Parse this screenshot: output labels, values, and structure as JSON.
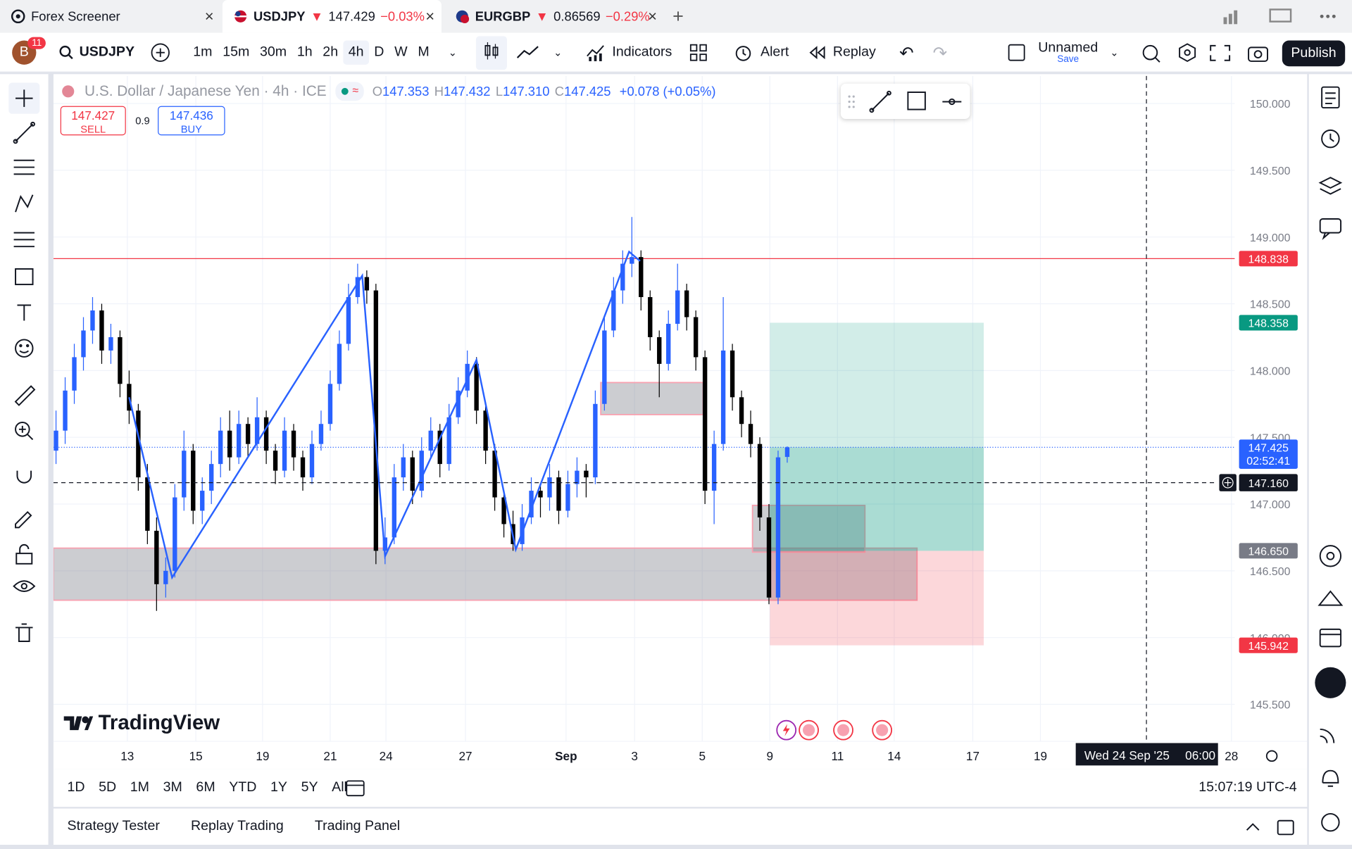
{
  "tabs": [
    {
      "title": "Forex Screener"
    },
    {
      "symbol": "USDJPY",
      "arrow": "▼",
      "price": "147.429",
      "change": "−0.03%"
    },
    {
      "symbol": "EURGBP",
      "arrow": "▼",
      "price": "0.86569",
      "change": "−0.29%"
    }
  ],
  "toolbar": {
    "avatar": "B",
    "badge": "11",
    "symbol": "USDJPY",
    "intervals": [
      "1m",
      "15m",
      "30m",
      "1h",
      "2h",
      "4h",
      "D",
      "W",
      "M"
    ],
    "active_interval": 5,
    "indicators": "Indicators",
    "alert": "Alert",
    "replay": "Replay",
    "layout": "Unnamed",
    "save": "Save",
    "publish": "Publish"
  },
  "legend": {
    "name": "U.S. Dollar / Japanese Yen · 4h · ICE",
    "ohlc": [
      {
        "k": "O",
        "v": "147.353"
      },
      {
        "k": "H",
        "v": "147.432"
      },
      {
        "k": "L",
        "v": "147.310"
      },
      {
        "k": "C",
        "v": "147.425"
      }
    ],
    "change": "+0.078 (+0.05%)",
    "sell": {
      "price": "147.427",
      "label": "SELL"
    },
    "spread": "0.9",
    "buy": {
      "price": "147.436",
      "label": "BUY"
    }
  },
  "chart": {
    "type": "candlestick",
    "up_color": "#2962ff",
    "down_color": "#000000",
    "grid": true,
    "ylim": [
      145.223,
      150.207
    ],
    "yticks": [
      {
        "value": 150,
        "label": "150.000"
      },
      {
        "value": 149.5,
        "label": "149.500"
      },
      {
        "value": 149,
        "label": "149.000"
      },
      {
        "value": 148.5,
        "label": "148.500"
      },
      {
        "value": 148,
        "label": "148.000"
      },
      {
        "value": 147.5,
        "label": "147.500"
      },
      {
        "value": 147,
        "label": "147.000"
      },
      {
        "value": 146.5,
        "label": "146.500"
      },
      {
        "value": 146,
        "label": "146.000"
      },
      {
        "value": 145.5,
        "label": "145.500"
      }
    ],
    "xlim": [
      -0.28,
      128.96
    ],
    "xticks": [
      {
        "value": 7.8,
        "label": "13"
      },
      {
        "value": 15.3,
        "label": "15"
      },
      {
        "value": 22.6,
        "label": "19"
      },
      {
        "value": 30,
        "label": "21"
      },
      {
        "value": 36.1,
        "label": "24"
      },
      {
        "value": 44.8,
        "label": "27"
      },
      {
        "value": 55.8,
        "label": "Sep"
      },
      {
        "value": 63.3,
        "label": "3"
      },
      {
        "value": 70.7,
        "label": "5"
      },
      {
        "value": 78.1,
        "label": "9"
      },
      {
        "value": 85.5,
        "label": "11"
      },
      {
        "value": 91.7,
        "label": "14"
      },
      {
        "value": 100.3,
        "label": "17"
      },
      {
        "value": 107.7,
        "label": "19"
      },
      {
        "value": 128.6,
        "label": "28"
      }
    ],
    "candles": [
      [
        147.4,
        147.7,
        147.3,
        147.55
      ],
      [
        147.55,
        147.95,
        147.45,
        147.85
      ],
      [
        147.85,
        148.2,
        147.75,
        148.1
      ],
      [
        148.1,
        148.4,
        148.0,
        148.3
      ],
      [
        148.3,
        148.55,
        148.2,
        148.45
      ],
      [
        148.45,
        148.5,
        148.05,
        148.15
      ],
      [
        148.15,
        148.35,
        148.05,
        148.25
      ],
      [
        148.25,
        148.3,
        147.8,
        147.9
      ],
      [
        147.9,
        148.0,
        147.6,
        147.7
      ],
      [
        147.7,
        147.75,
        147.1,
        147.2
      ],
      [
        147.2,
        147.3,
        146.7,
        146.8
      ],
      [
        146.8,
        146.9,
        146.2,
        146.4
      ],
      [
        146.4,
        146.6,
        146.3,
        146.5
      ],
      [
        146.5,
        147.15,
        146.45,
        147.05
      ],
      [
        147.05,
        147.55,
        146.95,
        147.4
      ],
      [
        147.4,
        147.45,
        146.85,
        146.95
      ],
      [
        146.95,
        147.2,
        146.85,
        147.1
      ],
      [
        147.1,
        147.4,
        147.0,
        147.3
      ],
      [
        147.3,
        147.65,
        147.2,
        147.55
      ],
      [
        147.55,
        147.7,
        147.25,
        147.35
      ],
      [
        147.35,
        147.7,
        147.3,
        147.6
      ],
      [
        147.6,
        147.65,
        147.35,
        147.45
      ],
      [
        147.45,
        147.8,
        147.4,
        147.65
      ],
      [
        147.65,
        147.7,
        147.3,
        147.4
      ],
      [
        147.4,
        147.45,
        147.15,
        147.25
      ],
      [
        147.25,
        147.65,
        147.2,
        147.55
      ],
      [
        147.55,
        147.6,
        147.25,
        147.35
      ],
      [
        147.35,
        147.4,
        147.1,
        147.2
      ],
      [
        147.2,
        147.55,
        147.15,
        147.45
      ],
      [
        147.45,
        147.7,
        147.4,
        147.6
      ],
      [
        147.6,
        148.0,
        147.55,
        147.9
      ],
      [
        147.9,
        148.3,
        147.85,
        148.2
      ],
      [
        148.2,
        148.65,
        148.15,
        148.55
      ],
      [
        148.55,
        148.8,
        148.5,
        148.7
      ],
      [
        148.7,
        148.75,
        148.5,
        148.6
      ],
      [
        148.6,
        148.65,
        146.55,
        146.65
      ],
      [
        146.65,
        146.9,
        146.55,
        146.75
      ],
      [
        146.75,
        147.3,
        146.7,
        147.2
      ],
      [
        147.2,
        147.45,
        147.1,
        147.35
      ],
      [
        147.35,
        147.4,
        147.0,
        147.1
      ],
      [
        147.1,
        147.5,
        147.05,
        147.4
      ],
      [
        147.4,
        147.65,
        147.35,
        147.55
      ],
      [
        147.55,
        147.6,
        147.2,
        147.3
      ],
      [
        147.3,
        147.75,
        147.25,
        147.65
      ],
      [
        147.65,
        147.95,
        147.6,
        147.85
      ],
      [
        147.85,
        148.15,
        147.8,
        148.05
      ],
      [
        148.05,
        148.1,
        147.6,
        147.7
      ],
      [
        147.7,
        147.75,
        147.3,
        147.4
      ],
      [
        147.4,
        147.45,
        146.95,
        147.05
      ],
      [
        147.05,
        147.1,
        146.75,
        146.85
      ],
      [
        146.85,
        146.95,
        146.65,
        146.7
      ],
      [
        146.7,
        147.0,
        146.65,
        146.9
      ],
      [
        146.9,
        147.2,
        146.85,
        147.1
      ],
      [
        147.1,
        147.15,
        146.9,
        147.05
      ],
      [
        147.05,
        147.3,
        146.95,
        147.2
      ],
      [
        147.2,
        147.25,
        146.85,
        146.95
      ],
      [
        146.95,
        147.25,
        146.9,
        147.15
      ],
      [
        147.15,
        147.35,
        147.05,
        147.25
      ],
      [
        147.25,
        147.3,
        147.05,
        147.2
      ],
      [
        147.2,
        147.85,
        147.15,
        147.75
      ],
      [
        147.75,
        148.4,
        147.7,
        148.3
      ],
      [
        148.3,
        148.7,
        148.25,
        148.6
      ],
      [
        148.6,
        148.9,
        148.5,
        148.8
      ],
      [
        148.8,
        149.15,
        148.7,
        148.85
      ],
      [
        148.85,
        148.9,
        148.45,
        148.55
      ],
      [
        148.55,
        148.6,
        148.15,
        148.25
      ],
      [
        148.25,
        148.3,
        147.8,
        148.05
      ],
      [
        148.05,
        148.45,
        148.0,
        148.35
      ],
      [
        148.35,
        148.8,
        148.3,
        148.6
      ],
      [
        148.6,
        148.65,
        148.3,
        148.4
      ],
      [
        148.4,
        148.45,
        148.0,
        148.1
      ],
      [
        148.1,
        148.15,
        147.0,
        147.1
      ],
      [
        147.1,
        147.55,
        146.85,
        147.45
      ],
      [
        147.45,
        148.55,
        147.4,
        148.15
      ],
      [
        148.15,
        148.2,
        147.7,
        147.8
      ],
      [
        147.8,
        147.85,
        147.5,
        147.6
      ],
      [
        147.6,
        147.7,
        147.35,
        147.45
      ],
      [
        147.45,
        147.5,
        146.8,
        146.9
      ],
      [
        146.9,
        147.0,
        146.25,
        146.3
      ],
      [
        146.3,
        147.4,
        146.25,
        147.35
      ],
      [
        147.353,
        147.432,
        147.31,
        147.425
      ]
    ],
    "zigzag": {
      "bar": [
        8,
        12.7,
        33.5,
        36,
        46,
        50.3,
        62.7,
        63.9
      ],
      "price": [
        147.8,
        146.45,
        148.71,
        146.61,
        148.08,
        146.66,
        148.89,
        148.82
      ],
      "color": "#2962ff"
    },
    "boxes": [
      {
        "x": [
          -0.3,
          94.2
        ],
        "y": [
          146.28,
          146.67
        ]
      },
      {
        "x": [
          59.6,
          70.8
        ],
        "y": [
          147.67,
          147.91
        ]
      },
      {
        "x": [
          76.2,
          88.5
        ],
        "y": [
          146.64,
          146.99
        ]
      }
    ],
    "position": {
      "x": [
        78.1,
        101.5
      ],
      "entry": 146.65,
      "target": 148.358,
      "stop": 145.942
    },
    "levels": [
      {
        "value": 148.838,
        "label": "148.838",
        "color": "#f23645",
        "line": "solid"
      },
      {
        "value": 148.358,
        "label": "148.358",
        "color": "#089981",
        "line": "none"
      },
      {
        "value": 147.425,
        "label": "147.425",
        "sub": "02:52:41",
        "color": "#2962ff",
        "line": "dotted"
      },
      {
        "value": 146.65,
        "label": "146.650",
        "color": "#787b86",
        "line": "none"
      },
      {
        "value": 145.942,
        "label": "145.942",
        "color": "#f23645",
        "line": "none"
      }
    ],
    "crosshair": {
      "x": 119.3,
      "price": {
        "value": 147.16,
        "label": "147.160"
      },
      "date": "Wed 24 Sep '25",
      "time": "06:00"
    }
  },
  "watermark": "TradingView",
  "ranges": [
    "1D",
    "5D",
    "1M",
    "3M",
    "6M",
    "YTD",
    "1Y",
    "5Y",
    "All"
  ],
  "clock": "15:07:19 UTC-4",
  "panel_tabs": [
    "Strategy Tester",
    "Replay Trading",
    "Trading Panel"
  ]
}
